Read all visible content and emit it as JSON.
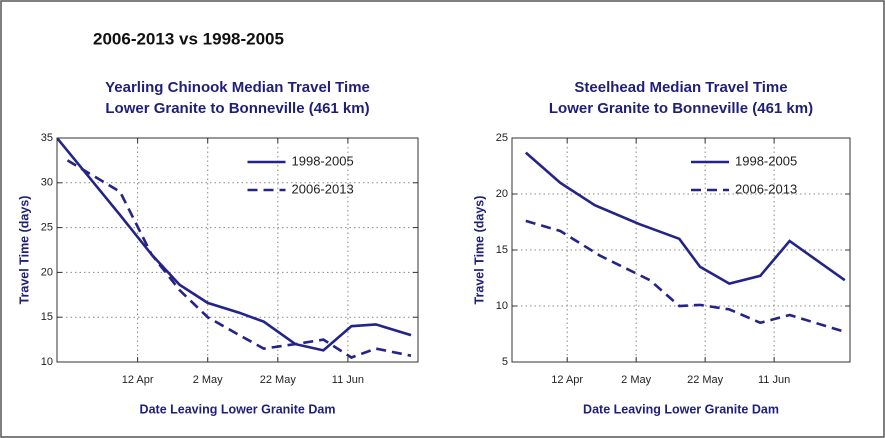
{
  "heading": "2006-2013 vs 1998-2005",
  "chart_data": [
    {
      "type": "line",
      "title": "Yearling Chinook Median Travel Time",
      "subtitle": "Lower Granite to  Bonneville (461 km)",
      "x_label": "Date Leaving Lower Granite Dam",
      "y_label": "Travel Time (days)",
      "xlim": [
        79,
        182
      ],
      "ylim": [
        10,
        35
      ],
      "xticks": [
        {
          "value": 102,
          "label": "12 Apr"
        },
        {
          "value": 122,
          "label": "2 May"
        },
        {
          "value": 142,
          "label": "22 May"
        },
        {
          "value": 162,
          "label": "11 Jun"
        }
      ],
      "yticks": [
        10,
        15,
        20,
        25,
        30,
        35
      ],
      "grid": true,
      "legend": "upper right",
      "series": [
        {
          "name": "1998-2005",
          "color": "#23238a",
          "dash": false,
          "x": [
            79,
            97,
            106,
            114,
            122,
            131,
            138,
            147,
            155,
            163,
            170,
            180
          ],
          "values": [
            35,
            26.4,
            22,
            18.6,
            16.6,
            15.5,
            14.5,
            12,
            11.3,
            14,
            14.2,
            13
          ]
        },
        {
          "name": "2006-2013",
          "color": "#23238a",
          "dash": true,
          "x": [
            82,
            97,
            106,
            114,
            122,
            131,
            138,
            147,
            155,
            163,
            170,
            180
          ],
          "values": [
            32.5,
            29,
            22,
            18,
            15,
            13,
            11.5,
            12,
            12.5,
            10.5,
            11.5,
            10.7
          ]
        }
      ]
    },
    {
      "type": "line",
      "title": "Steelhead Median Travel Time",
      "subtitle": "Lower Granite to  Bonneville (461 km)",
      "x_label": "Date Leaving Lower Granite Dam",
      "y_label": "Travel Time (days)",
      "xlim": [
        86,
        184
      ],
      "ylim": [
        5,
        25
      ],
      "xticks": [
        {
          "value": 102,
          "label": "12 Apr"
        },
        {
          "value": 122,
          "label": "2 May"
        },
        {
          "value": 142,
          "label": "22 May"
        },
        {
          "value": 162,
          "label": "11 Jun"
        }
      ],
      "yticks": [
        5,
        10,
        15,
        20,
        25
      ],
      "grid": true,
      "legend": "upper right",
      "series": [
        {
          "name": "1998-2005",
          "color": "#23238a",
          "dash": false,
          "x": [
            90,
            100,
            110,
            123,
            134.5,
            140.5,
            149,
            158,
            166.5,
            182.5
          ],
          "values": [
            23.7,
            21,
            19,
            17.3,
            16,
            13.5,
            12,
            12.7,
            15.8,
            12.3
          ]
        },
        {
          "name": "2006-2013",
          "color": "#23238a",
          "dash": true,
          "x": [
            90,
            100,
            111.5,
            126,
            134.5,
            140.5,
            149,
            158,
            166.5,
            182.5
          ],
          "values": [
            17.6,
            16.7,
            14.5,
            12.3,
            10,
            10.1,
            9.7,
            8.5,
            9.2,
            7.7
          ]
        }
      ]
    }
  ]
}
